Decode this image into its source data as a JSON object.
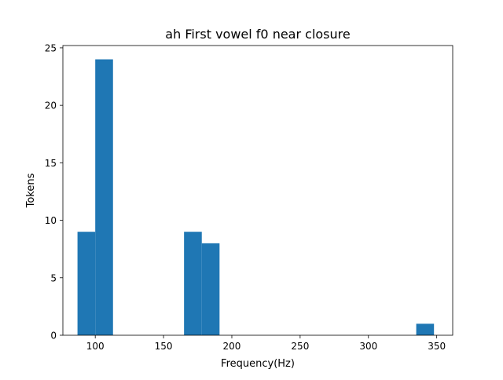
{
  "chart_data": {
    "type": "bar",
    "title": "ah First vowel f0 near closure",
    "xlabel": "Frequency(Hz)",
    "ylabel": "Tokens",
    "xlim": [
      76.3,
      361.7
    ],
    "ylim": [
      0,
      25.2
    ],
    "xticks": [
      100,
      150,
      200,
      250,
      300,
      350
    ],
    "yticks": [
      0,
      5,
      10,
      15,
      20,
      25
    ],
    "bin_width": 13.0,
    "bins": [
      {
        "x0": 87,
        "x1": 100,
        "value": 9
      },
      {
        "x0": 100,
        "x1": 113,
        "value": 24
      },
      {
        "x0": 165,
        "x1": 178,
        "value": 9
      },
      {
        "x0": 178,
        "x1": 191,
        "value": 8
      },
      {
        "x0": 335,
        "x1": 348,
        "value": 1
      }
    ],
    "bar_color": "#1f77b4",
    "grid": false,
    "legend": "none"
  }
}
